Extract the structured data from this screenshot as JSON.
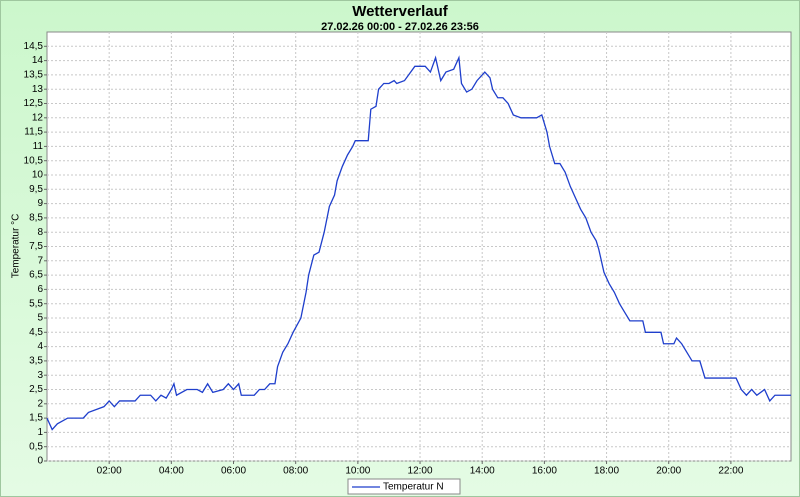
{
  "chart_data": {
    "type": "line",
    "title": "Wetterverlauf",
    "subtitle": "27.02.26 00:00 - 27.02.26 23:56",
    "y_label": "Temperatur °C",
    "x": [
      "00:00",
      "00:10",
      "00:20",
      "00:40",
      "01:10",
      "01:20",
      "01:50",
      "02:00",
      "02:10",
      "02:20",
      "02:50",
      "03:00",
      "03:20",
      "03:30",
      "03:40",
      "03:50",
      "04:00",
      "04:05",
      "04:10",
      "04:30",
      "04:50",
      "05:00",
      "05:10",
      "05:20",
      "05:40",
      "05:50",
      "06:00",
      "06:10",
      "06:15",
      "06:40",
      "06:50",
      "07:00",
      "07:10",
      "07:20",
      "07:25",
      "07:35",
      "07:45",
      "07:55",
      "08:10",
      "08:20",
      "08:25",
      "08:35",
      "08:45",
      "08:55",
      "09:05",
      "09:15",
      "09:20",
      "09:30",
      "09:40",
      "09:50",
      "09:55",
      "10:20",
      "10:25",
      "10:35",
      "10:40",
      "10:50",
      "11:00",
      "11:10",
      "11:15",
      "11:30",
      "11:50",
      "12:10",
      "12:20",
      "12:30",
      "12:40",
      "12:50",
      "13:05",
      "13:15",
      "13:20",
      "13:30",
      "13:40",
      "13:50",
      "14:05",
      "14:15",
      "14:20",
      "14:30",
      "14:40",
      "14:50",
      "15:00",
      "15:15",
      "15:45",
      "15:55",
      "16:05",
      "16:10",
      "16:20",
      "16:30",
      "16:40",
      "16:50",
      "17:00",
      "17:10",
      "17:20",
      "17:30",
      "17:40",
      "17:45",
      "17:55",
      "18:05",
      "18:15",
      "18:25",
      "18:35",
      "18:45",
      "19:10",
      "19:15",
      "19:45",
      "19:50",
      "20:10",
      "20:15",
      "20:25",
      "20:35",
      "20:45",
      "21:00",
      "21:10",
      "22:10",
      "22:20",
      "22:30",
      "22:40",
      "22:50",
      "23:05",
      "23:15",
      "23:25",
      "23:56"
    ],
    "series": [
      {
        "name": "Temperatur N",
        "color": "#1f3fcc",
        "values": [
          1.5,
          1.1,
          1.3,
          1.5,
          1.5,
          1.7,
          1.9,
          2.1,
          1.9,
          2.1,
          2.1,
          2.3,
          2.3,
          2.1,
          2.3,
          2.2,
          2.5,
          2.7,
          2.3,
          2.5,
          2.5,
          2.4,
          2.7,
          2.4,
          2.5,
          2.7,
          2.5,
          2.7,
          2.3,
          2.3,
          2.5,
          2.5,
          2.7,
          2.7,
          3.3,
          3.8,
          4.1,
          4.5,
          5.0,
          5.9,
          6.5,
          7.2,
          7.3,
          8.0,
          8.9,
          9.3,
          9.8,
          10.3,
          10.7,
          11.0,
          11.2,
          11.2,
          12.3,
          12.4,
          13.0,
          13.2,
          13.2,
          13.3,
          13.2,
          13.3,
          13.8,
          13.8,
          13.6,
          14.1,
          13.3,
          13.6,
          13.7,
          14.1,
          13.2,
          12.9,
          13.0,
          13.3,
          13.6,
          13.4,
          13.0,
          12.7,
          12.7,
          12.5,
          12.1,
          12.0,
          12.0,
          12.1,
          11.5,
          11.0,
          10.4,
          10.4,
          10.1,
          9.6,
          9.2,
          8.8,
          8.5,
          8.0,
          7.7,
          7.4,
          6.6,
          6.2,
          5.9,
          5.5,
          5.2,
          4.9,
          4.9,
          4.5,
          4.5,
          4.1,
          4.1,
          4.3,
          4.1,
          3.8,
          3.5,
          3.5,
          2.9,
          2.9,
          2.5,
          2.3,
          2.5,
          2.3,
          2.5,
          2.1,
          2.3,
          2.3
        ]
      }
    ],
    "xlim": [
      "00:00",
      "23:56"
    ],
    "xticks": [
      "02:00",
      "04:00",
      "06:00",
      "08:00",
      "10:00",
      "12:00",
      "14:00",
      "16:00",
      "18:00",
      "20:00",
      "22:00"
    ],
    "ylim": [
      0,
      15
    ],
    "yticks": [
      0,
      {
        "value": 0.5,
        "label": "0,5"
      },
      1,
      {
        "value": 1.5,
        "label": "1,5"
      },
      2,
      {
        "value": 2.5,
        "label": "2,5"
      },
      3,
      {
        "value": 3.5,
        "label": "3,5"
      },
      4,
      {
        "value": 4.5,
        "label": "4,5"
      },
      5,
      {
        "value": 5.5,
        "label": "5,5"
      },
      6,
      {
        "value": 6.5,
        "label": "6,5"
      },
      7,
      {
        "value": 7.5,
        "label": "7,5"
      },
      8,
      {
        "value": 8.5,
        "label": "8,5"
      },
      9,
      {
        "value": 9.5,
        "label": "9,5"
      },
      10,
      {
        "value": 10.5,
        "label": "10,5"
      },
      11,
      {
        "value": 11.5,
        "label": "11,5"
      },
      12,
      {
        "value": 12.5,
        "label": "12,5"
      },
      13,
      {
        "value": 13.5,
        "label": "13,5"
      },
      14,
      {
        "value": 14.5,
        "label": "14,5"
      }
    ],
    "grid": true,
    "legend": "bottom"
  }
}
